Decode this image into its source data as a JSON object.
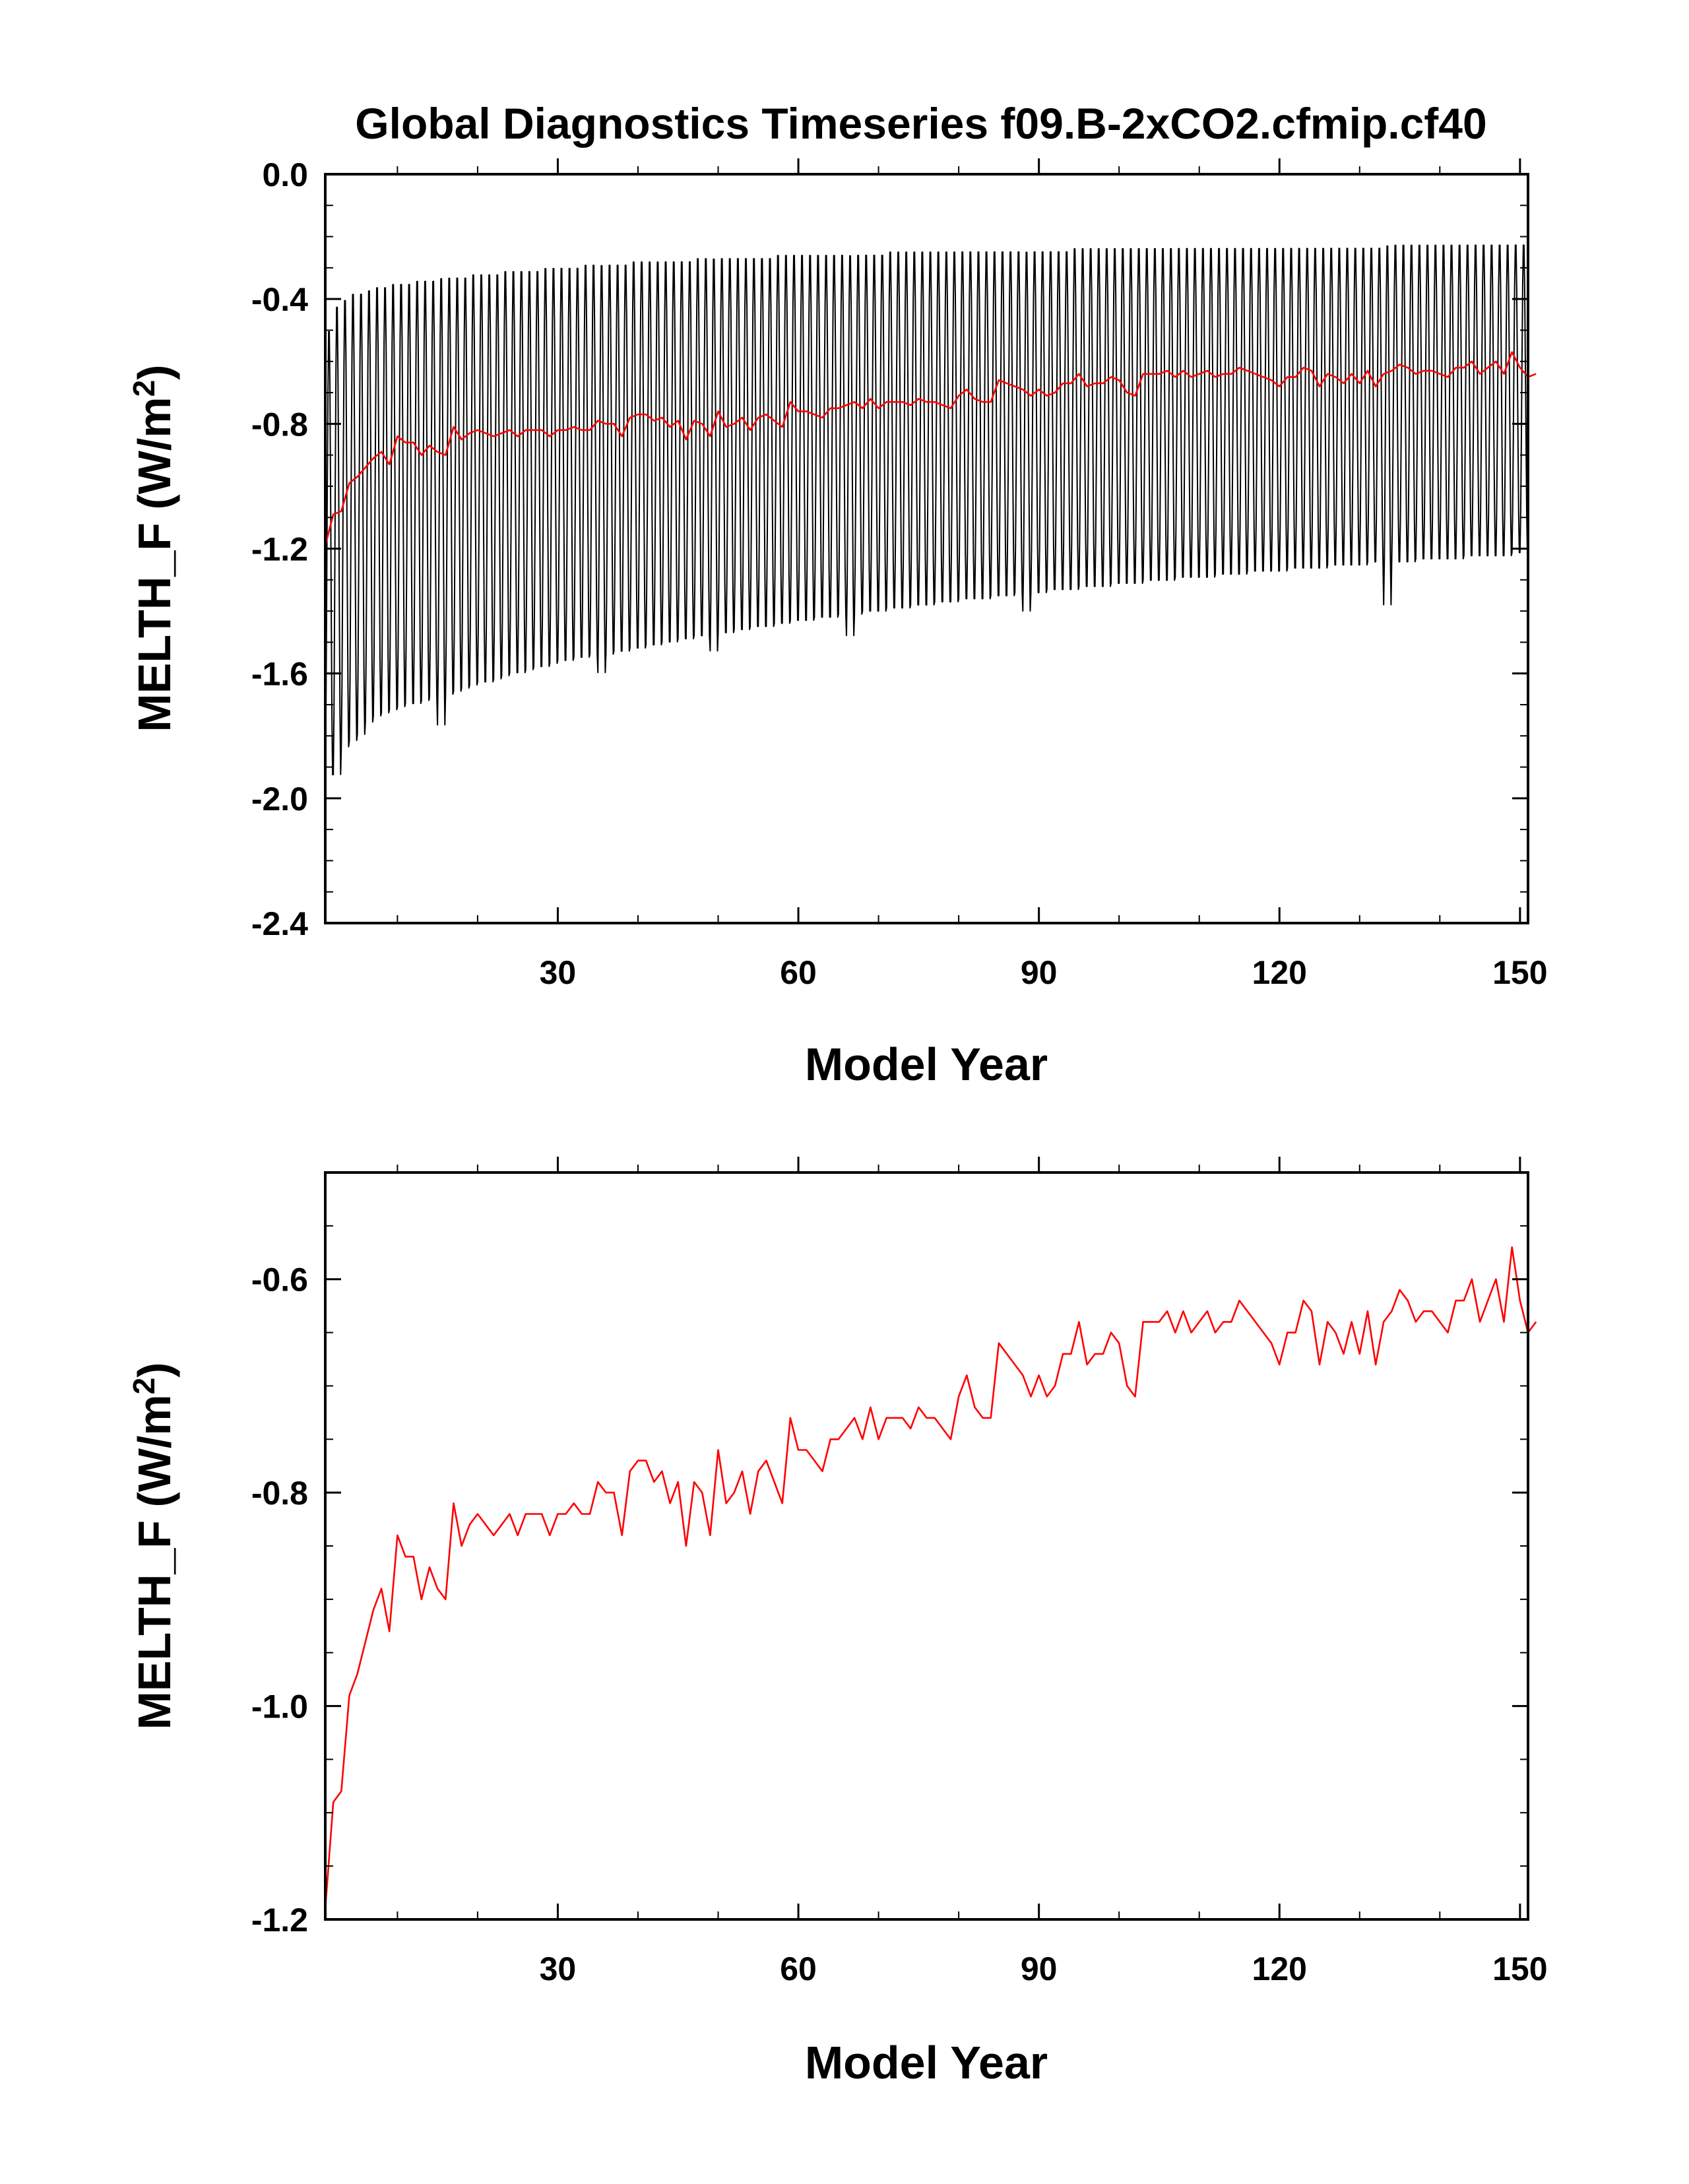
{
  "title": "Global Diagnostics Timeseries f09.B-2xCO2.cfmip.cf40",
  "colors": {
    "monthly": "#000000",
    "annual": "#ff0000"
  },
  "chart_data": [
    {
      "type": "line",
      "xlabel": "Model Year",
      "ylabel": "MELTH_F (W/m²)",
      "xlim": [
        1,
        151
      ],
      "ylim": [
        -2.4,
        0.0
      ],
      "x_ticks": [
        "30",
        "60",
        "90",
        "120",
        "150"
      ],
      "y_ticks": [
        "0.0",
        "-0.4",
        "-0.8",
        "-1.2",
        "-1.6",
        "-2.0",
        "-2.4"
      ],
      "grid": false,
      "series": [
        {
          "color": "#000000",
          "kind": "monthly",
          "x_start": 1,
          "x_step": 0.0833333,
          "seasonal_max": [
            -0.48,
            -0.4,
            -0.38,
            -0.36,
            -0.36,
            -0.35,
            -0.34,
            -0.34,
            -0.33,
            -0.33,
            -0.33,
            -0.32,
            -0.32,
            -0.32,
            -0.31,
            -0.31,
            -0.31,
            -0.31,
            -0.3,
            -0.3,
            -0.3,
            -0.3,
            -0.29,
            -0.29,
            -0.29,
            -0.29,
            -0.29,
            -0.28,
            -0.28,
            -0.28,
            -0.28,
            -0.28,
            -0.27,
            -0.27,
            -0.27,
            -0.27,
            -0.27,
            -0.27,
            -0.26,
            -0.26,
            -0.26,
            -0.26,
            -0.26,
            -0.26,
            -0.26,
            -0.26,
            -0.25,
            -0.25,
            -0.25,
            -0.25,
            -0.25,
            -0.25,
            -0.25,
            -0.25,
            -0.25,
            -0.25,
            -0.24,
            -0.24,
            -0.24,
            -0.24,
            -0.24,
            -0.24,
            -0.24,
            -0.24,
            -0.24,
            -0.24,
            -0.24,
            -0.24,
            -0.24,
            -0.24,
            -0.23,
            -0.23,
            -0.23,
            -0.23,
            -0.23,
            -0.23,
            -0.23,
            -0.23,
            -0.23,
            -0.23,
            -0.23,
            -0.23,
            -0.23,
            -0.23,
            -0.23,
            -0.23,
            -0.23,
            -0.23,
            -0.23,
            -0.23,
            -0.23,
            -0.23,
            -0.23,
            -0.22,
            -0.22,
            -0.22,
            -0.22,
            -0.22,
            -0.22,
            -0.22,
            -0.22,
            -0.22,
            -0.22,
            -0.22,
            -0.22,
            -0.22,
            -0.22,
            -0.22,
            -0.22,
            -0.22,
            -0.22,
            -0.22,
            -0.22,
            -0.22,
            -0.22,
            -0.22,
            -0.22,
            -0.22,
            -0.22,
            -0.22,
            -0.22,
            -0.22,
            -0.22,
            -0.22,
            -0.22,
            -0.22,
            -0.22,
            -0.22,
            -0.22,
            -0.22,
            -0.22,
            -0.22,
            -0.21,
            -0.21,
            -0.21,
            -0.21,
            -0.21,
            -0.21,
            -0.21,
            -0.21,
            -0.21,
            -0.21,
            -0.21,
            -0.21,
            -0.21,
            -0.21,
            -0.21,
            -0.21,
            -0.21,
            -0.21,
            -0.21,
            -0.21,
            -0.21
          ],
          "seasonal_min": [
            -1.95,
            -1.95,
            -1.86,
            -1.84,
            -1.82,
            -1.78,
            -1.76,
            -1.75,
            -1.74,
            -1.73,
            -1.72,
            -1.72,
            -1.71,
            -1.7,
            -1.79,
            -1.69,
            -1.68,
            -1.67,
            -1.66,
            -1.65,
            -1.65,
            -1.64,
            -1.63,
            -1.62,
            -1.62,
            -1.61,
            -1.6,
            -1.6,
            -1.59,
            -1.58,
            -1.58,
            -1.57,
            -1.57,
            -1.56,
            -1.62,
            -1.56,
            -1.55,
            -1.55,
            -1.54,
            -1.54,
            -1.53,
            -1.53,
            -1.52,
            -1.52,
            -1.51,
            -1.51,
            -1.5,
            -1.5,
            -1.55,
            -1.49,
            -1.49,
            -1.48,
            -1.48,
            -1.47,
            -1.47,
            -1.47,
            -1.46,
            -1.46,
            -1.45,
            -1.45,
            -1.45,
            -1.44,
            -1.44,
            -1.44,
            -1.43,
            -1.5,
            -1.43,
            -1.42,
            -1.42,
            -1.42,
            -1.41,
            -1.41,
            -1.41,
            -1.4,
            -1.4,
            -1.4,
            -1.39,
            -1.39,
            -1.39,
            -1.38,
            -1.38,
            -1.38,
            -1.38,
            -1.37,
            -1.37,
            -1.37,
            -1.36,
            -1.42,
            -1.36,
            -1.36,
            -1.35,
            -1.35,
            -1.35,
            -1.35,
            -1.34,
            -1.34,
            -1.34,
            -1.34,
            -1.33,
            -1.33,
            -1.33,
            -1.33,
            -1.32,
            -1.32,
            -1.32,
            -1.32,
            -1.31,
            -1.31,
            -1.31,
            -1.31,
            -1.31,
            -1.3,
            -1.3,
            -1.3,
            -1.3,
            -1.29,
            -1.29,
            -1.29,
            -1.29,
            -1.29,
            -1.28,
            -1.28,
            -1.28,
            -1.28,
            -1.28,
            -1.27,
            -1.27,
            -1.27,
            -1.27,
            -1.27,
            -1.26,
            -1.26,
            -1.4,
            -1.26,
            -1.26,
            -1.26,
            -1.25,
            -1.25,
            -1.25,
            -1.25,
            -1.25,
            -1.25,
            -1.24,
            -1.24,
            -1.24,
            -1.24,
            -1.24,
            -1.24,
            -1.23,
            -1.23
          ]
        },
        {
          "color": "#ff0000",
          "kind": "annual",
          "x_start": 1,
          "values": [
            -1.19,
            -1.09,
            -1.08,
            -0.99,
            -0.97,
            -0.94,
            -0.91,
            -0.89,
            -0.93,
            -0.84,
            -0.86,
            -0.86,
            -0.9,
            -0.87,
            -0.89,
            -0.9,
            -0.81,
            -0.85,
            -0.83,
            -0.82,
            -0.83,
            -0.84,
            -0.83,
            -0.82,
            -0.84,
            -0.82,
            -0.82,
            -0.82,
            -0.84,
            -0.82,
            -0.82,
            -0.81,
            -0.82,
            -0.82,
            -0.79,
            -0.8,
            -0.8,
            -0.84,
            -0.78,
            -0.77,
            -0.77,
            -0.79,
            -0.78,
            -0.81,
            -0.79,
            -0.85,
            -0.79,
            -0.8,
            -0.84,
            -0.76,
            -0.81,
            -0.8,
            -0.78,
            -0.82,
            -0.78,
            -0.77,
            -0.79,
            -0.81,
            -0.73,
            -0.76,
            -0.76,
            -0.77,
            -0.78,
            -0.75,
            -0.75,
            -0.74,
            -0.73,
            -0.75,
            -0.72,
            -0.75,
            -0.73,
            -0.73,
            -0.73,
            -0.74,
            -0.72,
            -0.73,
            -0.73,
            -0.74,
            -0.75,
            -0.71,
            -0.69,
            -0.72,
            -0.73,
            -0.73,
            -0.66,
            -0.67,
            -0.68,
            -0.69,
            -0.71,
            -0.69,
            -0.71,
            -0.7,
            -0.67,
            -0.67,
            -0.64,
            -0.68,
            -0.67,
            -0.67,
            -0.65,
            -0.66,
            -0.7,
            -0.71,
            -0.64,
            -0.64,
            -0.64,
            -0.63,
            -0.65,
            -0.63,
            -0.65,
            -0.64,
            -0.63,
            -0.65,
            -0.64,
            -0.64,
            -0.62,
            -0.63,
            -0.64,
            -0.65,
            -0.66,
            -0.68,
            -0.65,
            -0.65,
            -0.62,
            -0.63,
            -0.68,
            -0.64,
            -0.65,
            -0.67,
            -0.64,
            -0.67,
            -0.63,
            -0.68,
            -0.64,
            -0.63,
            -0.61,
            -0.62,
            -0.64,
            -0.63,
            -0.63,
            -0.64,
            -0.65,
            -0.62,
            -0.62,
            -0.6,
            -0.64,
            -0.62,
            -0.6,
            -0.64,
            -0.57,
            -0.62,
            -0.65,
            -0.64
          ]
        }
      ]
    },
    {
      "type": "line",
      "xlabel": "Model Year",
      "ylabel": "MELTH_F (W/m²)",
      "xlim": [
        1,
        151
      ],
      "ylim": [
        -1.2,
        -0.5
      ],
      "x_ticks": [
        "30",
        "60",
        "90",
        "120",
        "150"
      ],
      "y_ticks": [
        "-0.6",
        "-0.8",
        "-1.0",
        "-1.2"
      ],
      "grid": false,
      "series": [
        {
          "color": "#ff0000",
          "kind": "annual",
          "x_start": 1,
          "values": [
            -1.19,
            -1.09,
            -1.08,
            -0.99,
            -0.97,
            -0.94,
            -0.91,
            -0.89,
            -0.93,
            -0.84,
            -0.86,
            -0.86,
            -0.9,
            -0.87,
            -0.89,
            -0.9,
            -0.81,
            -0.85,
            -0.83,
            -0.82,
            -0.83,
            -0.84,
            -0.83,
            -0.82,
            -0.84,
            -0.82,
            -0.82,
            -0.82,
            -0.84,
            -0.82,
            -0.82,
            -0.81,
            -0.82,
            -0.82,
            -0.79,
            -0.8,
            -0.8,
            -0.84,
            -0.78,
            -0.77,
            -0.77,
            -0.79,
            -0.78,
            -0.81,
            -0.79,
            -0.85,
            -0.79,
            -0.8,
            -0.84,
            -0.76,
            -0.81,
            -0.8,
            -0.78,
            -0.82,
            -0.78,
            -0.77,
            -0.79,
            -0.81,
            -0.73,
            -0.76,
            -0.76,
            -0.77,
            -0.78,
            -0.75,
            -0.75,
            -0.74,
            -0.73,
            -0.75,
            -0.72,
            -0.75,
            -0.73,
            -0.73,
            -0.73,
            -0.74,
            -0.72,
            -0.73,
            -0.73,
            -0.74,
            -0.75,
            -0.71,
            -0.69,
            -0.72,
            -0.73,
            -0.73,
            -0.66,
            -0.67,
            -0.68,
            -0.69,
            -0.71,
            -0.69,
            -0.71,
            -0.7,
            -0.67,
            -0.67,
            -0.64,
            -0.68,
            -0.67,
            -0.67,
            -0.65,
            -0.66,
            -0.7,
            -0.71,
            -0.64,
            -0.64,
            -0.64,
            -0.63,
            -0.65,
            -0.63,
            -0.65,
            -0.64,
            -0.63,
            -0.65,
            -0.64,
            -0.64,
            -0.62,
            -0.63,
            -0.64,
            -0.65,
            -0.66,
            -0.68,
            -0.65,
            -0.65,
            -0.62,
            -0.63,
            -0.68,
            -0.64,
            -0.65,
            -0.67,
            -0.64,
            -0.67,
            -0.63,
            -0.68,
            -0.64,
            -0.63,
            -0.61,
            -0.62,
            -0.64,
            -0.63,
            -0.63,
            -0.64,
            -0.65,
            -0.62,
            -0.62,
            -0.6,
            -0.64,
            -0.62,
            -0.6,
            -0.64,
            -0.57,
            -0.62,
            -0.65,
            -0.64
          ]
        }
      ]
    }
  ]
}
